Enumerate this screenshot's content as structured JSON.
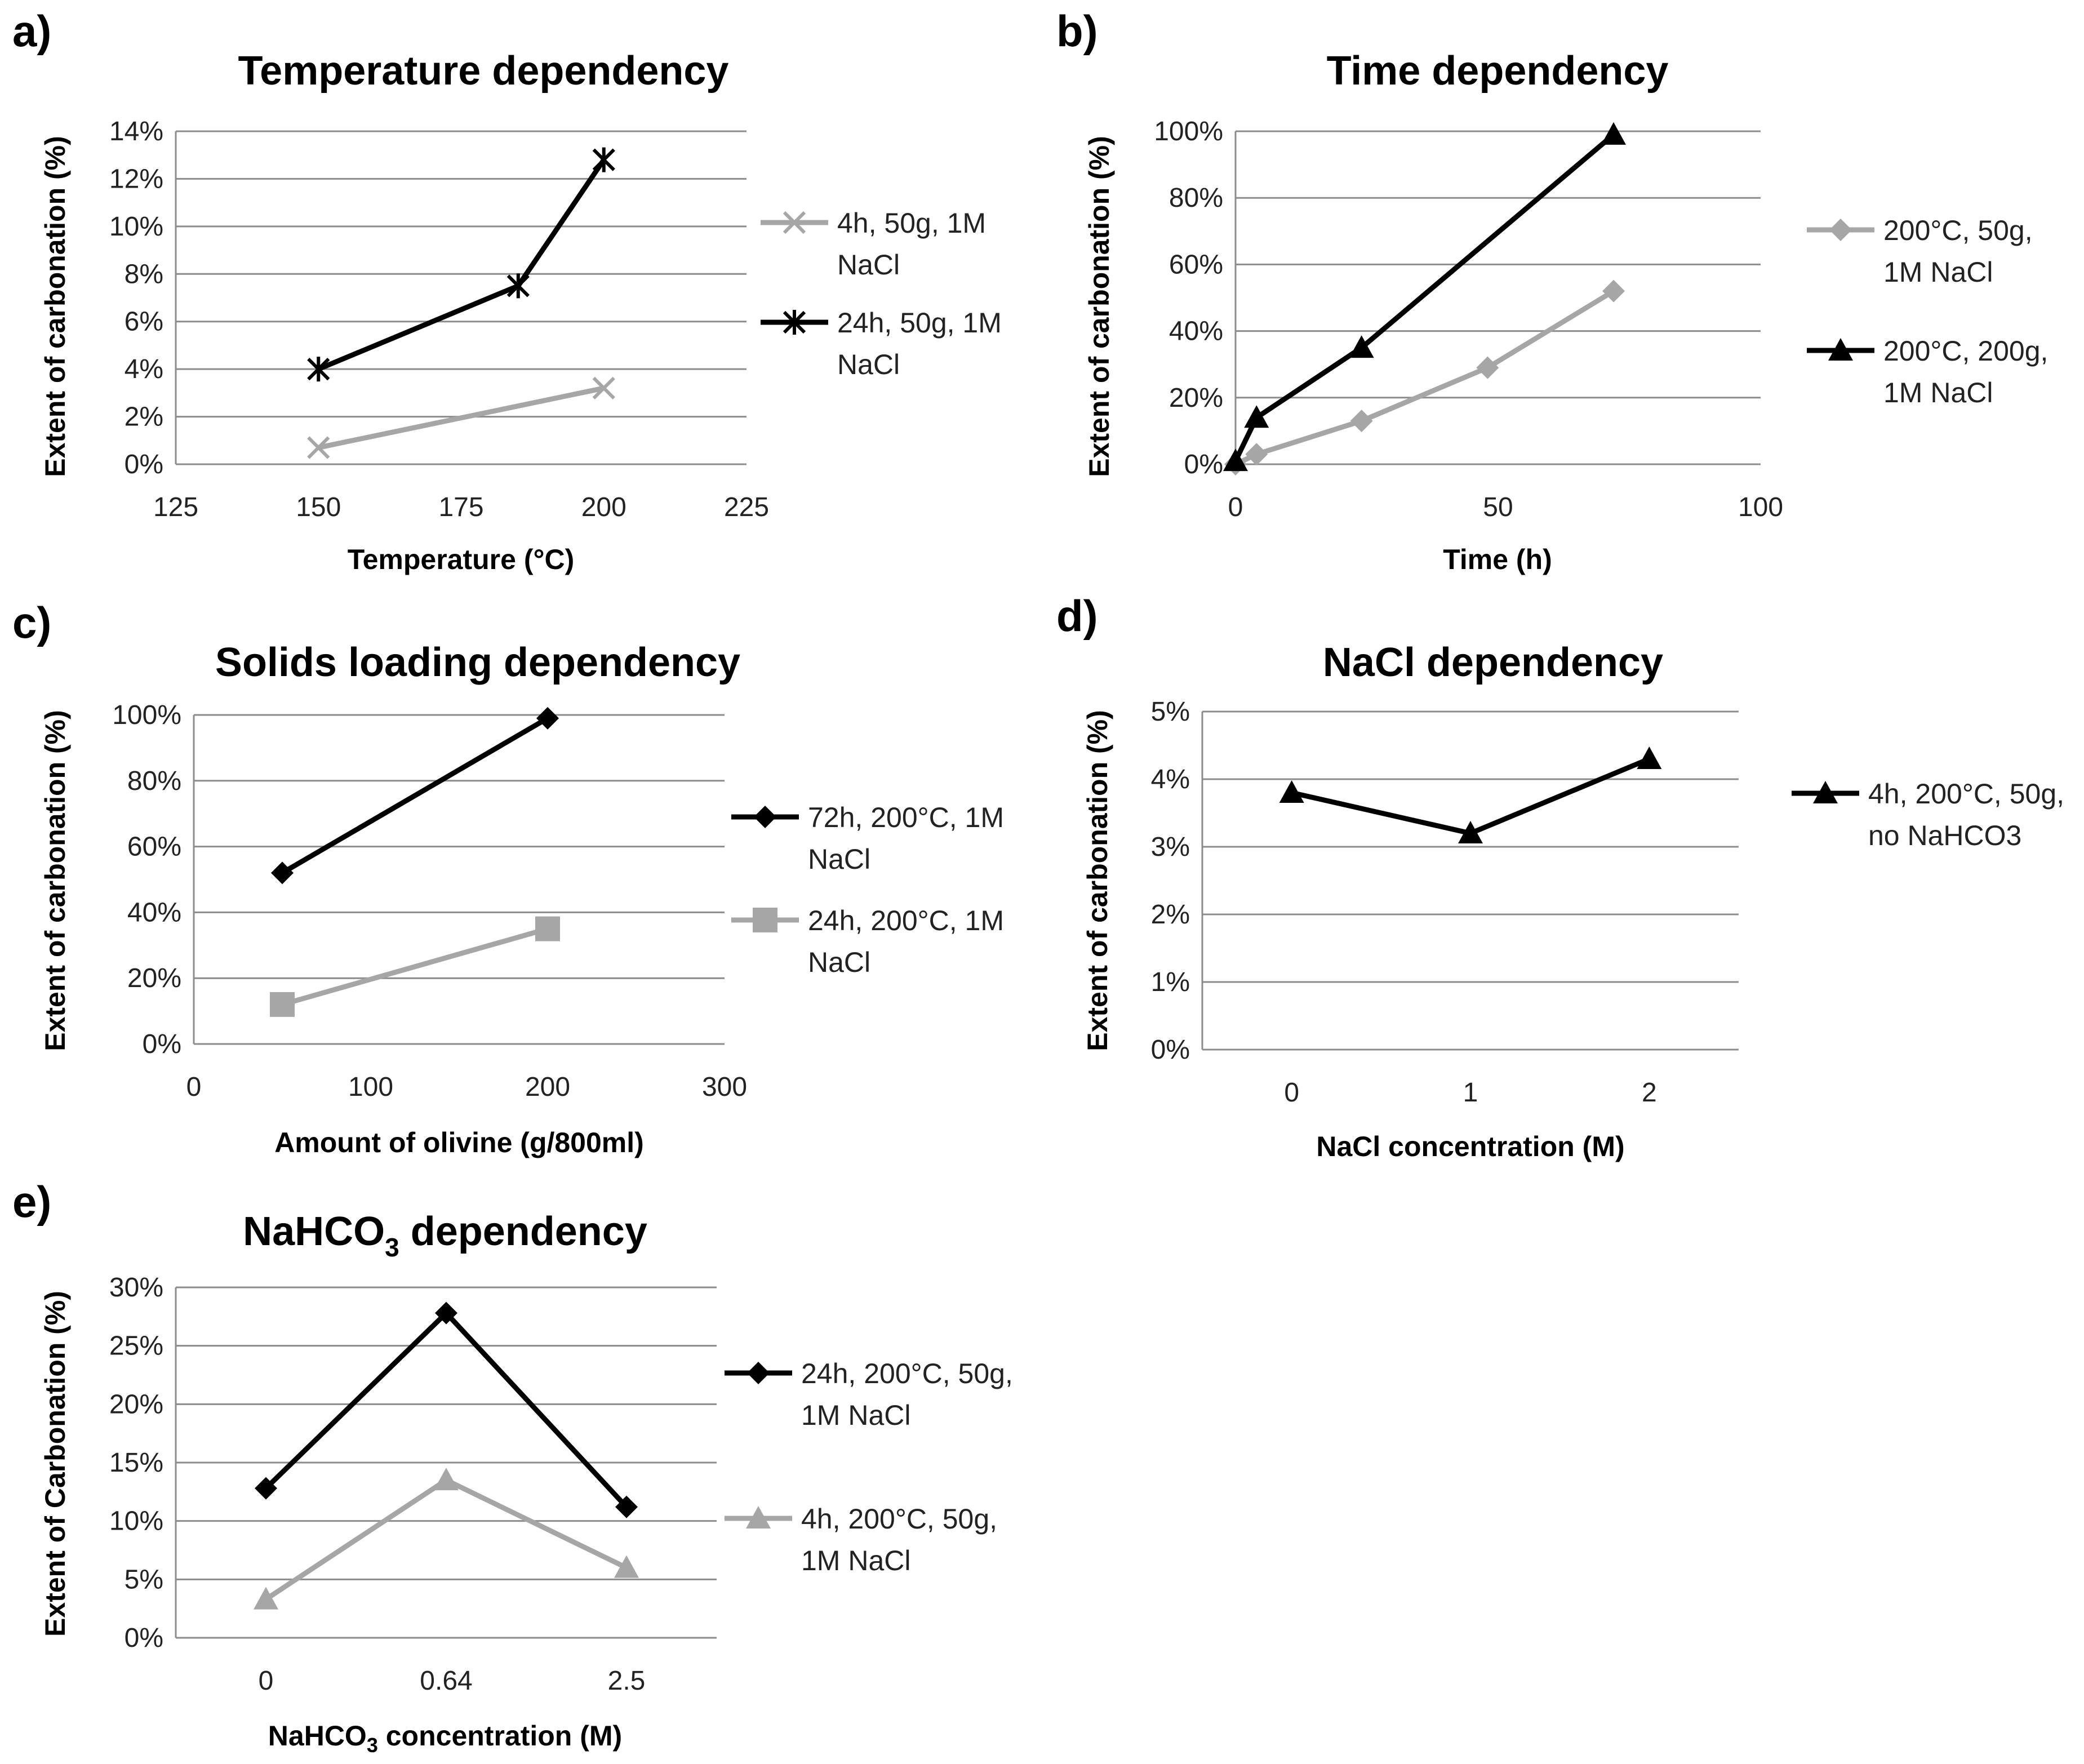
{
  "chart_data": [
    {
      "panel": "a)",
      "type": "line",
      "title": "Temperature dependency",
      "xlabel": "Temperature (°C)",
      "ylabel": "Extent of carbonation (%)",
      "xlim": [
        125,
        225
      ],
      "xticks": [
        "125",
        "150",
        "175",
        "200",
        "225"
      ],
      "ylim": [
        0,
        14
      ],
      "yticks": [
        "0%",
        "2%",
        "4%",
        "6%",
        "8%",
        "10%",
        "12%",
        "14%"
      ],
      "grid": true,
      "legend_position": "right",
      "series": [
        {
          "name": "4h, 50g, 1M NaCl",
          "legend_lines": [
            "4h, 50g, 1M",
            "NaCl"
          ],
          "color": "#a6a6a6",
          "marker": "x",
          "x": [
            150,
            200
          ],
          "y": [
            0.7,
            3.2
          ]
        },
        {
          "name": "24h, 50g, 1M NaCl",
          "legend_lines": [
            "24h, 50g, 1M",
            "NaCl"
          ],
          "color": "#000000",
          "marker": "star",
          "x": [
            150,
            185,
            200
          ],
          "y": [
            4.0,
            7.5,
            12.8
          ]
        }
      ]
    },
    {
      "panel": "b)",
      "type": "line",
      "title": "Time dependency",
      "xlabel": "Time (h)",
      "ylabel": "Extent of carbonation (%)",
      "xlim": [
        0,
        100
      ],
      "xticks": [
        "0",
        "50",
        "100"
      ],
      "ylim": [
        0,
        100
      ],
      "yticks": [
        "0%",
        "20%",
        "40%",
        "60%",
        "80%",
        "100%"
      ],
      "grid": true,
      "legend_position": "right",
      "series": [
        {
          "name": "200°C, 50g, 1M NaCl",
          "legend_lines": [
            "200°C, 50g,",
            "1M NaCl"
          ],
          "color": "#a6a6a6",
          "marker": "diamond",
          "x": [
            0,
            4,
            24,
            48,
            72
          ],
          "y": [
            0,
            3,
            13,
            29,
            52
          ]
        },
        {
          "name": "200°C, 200g, 1M NaCl",
          "legend_lines": [
            "200°C, 200g,",
            "1M NaCl"
          ],
          "color": "#000000",
          "marker": "triangle",
          "x": [
            0,
            4,
            24,
            72
          ],
          "y": [
            1,
            14,
            35,
            99
          ]
        }
      ]
    },
    {
      "panel": "c)",
      "type": "line",
      "title": "Solids loading dependency",
      "xlabel": "Amount of olivine (g/800ml)",
      "ylabel": "Extent of carbonation (%)",
      "xlim": [
        0,
        300
      ],
      "xticks": [
        "0",
        "100",
        "200",
        "300"
      ],
      "ylim": [
        0,
        100
      ],
      "yticks": [
        "0%",
        "20%",
        "40%",
        "60%",
        "80%",
        "100%"
      ],
      "grid": true,
      "legend_position": "right",
      "series": [
        {
          "name": "72h, 200°C, 1M NaCl",
          "legend_lines": [
            "72h, 200°C, 1M",
            "NaCl"
          ],
          "color": "#000000",
          "marker": "diamond",
          "x": [
            50,
            200
          ],
          "y": [
            52,
            99
          ]
        },
        {
          "name": "24h, 200°C, 1M NaCl",
          "legend_lines": [
            "24h, 200°C, 1M",
            "NaCl"
          ],
          "color": "#a6a6a6",
          "marker": "square",
          "x": [
            50,
            200
          ],
          "y": [
            12,
            35
          ]
        }
      ]
    },
    {
      "panel": "d)",
      "type": "line",
      "title": "NaCl dependency",
      "xlabel": "NaCl concentration (M)",
      "ylabel": "Extent of carbonation (%)",
      "categories": [
        "0",
        "1",
        "2"
      ],
      "ylim": [
        0,
        5
      ],
      "yticks": [
        "0%",
        "1%",
        "2%",
        "3%",
        "4%",
        "5%"
      ],
      "grid": true,
      "legend_position": "right",
      "series": [
        {
          "name": "4h, 200°C, 50g, no NaHCO3",
          "legend_lines": [
            "4h, 200°C, 50g,",
            "no NaHCO3"
          ],
          "color": "#000000",
          "marker": "triangle",
          "values": [
            3.8,
            3.2,
            4.3
          ]
        }
      ]
    },
    {
      "panel": "e)",
      "type": "line",
      "title_main": "NaHCO",
      "title_sub": "3",
      "title_tail": " dependency",
      "xlabel_main": "NaHCO",
      "xlabel_sub": "3",
      "xlabel_tail": " concentration (M)",
      "ylabel": "Extent of Carbonation (%)",
      "categories": [
        "0",
        "0.64",
        "2.5"
      ],
      "ylim": [
        0,
        30
      ],
      "yticks": [
        "0%",
        "5%",
        "10%",
        "15%",
        "20%",
        "25%",
        "30%"
      ],
      "grid": true,
      "legend_position": "right",
      "series": [
        {
          "name": "24h, 200°C, 50g, 1M NaCl",
          "legend_lines": [
            "24h, 200°C, 50g,",
            "1M NaCl"
          ],
          "color": "#000000",
          "marker": "diamond",
          "values": [
            12.8,
            27.8,
            11.2
          ]
        },
        {
          "name": "4h, 200°C, 50g, 1M NaCl",
          "legend_lines": [
            "4h, 200°C, 50g,",
            "1M NaCl"
          ],
          "color": "#a6a6a6",
          "marker": "triangle",
          "values": [
            3.3,
            13.5,
            6.0
          ]
        }
      ]
    }
  ]
}
